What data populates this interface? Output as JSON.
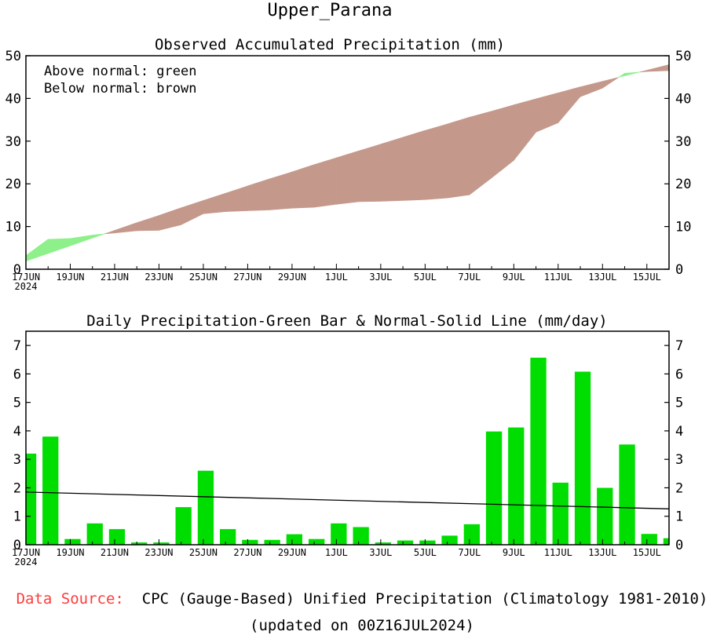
{
  "title": "Upper_Parana",
  "colors": {
    "above": "#8ef08a",
    "below": "#c4998c",
    "bars": "#00dd00",
    "normal_line": "#000000",
    "source_label": "#ff3b3b"
  },
  "legend": {
    "line1": "Above normal: green",
    "line2": "Below normal: brown"
  },
  "x_ticks": [
    {
      "day": 0,
      "label": "17JUN"
    },
    {
      "day": 2,
      "label": "19JUN"
    },
    {
      "day": 4,
      "label": "21JUN"
    },
    {
      "day": 6,
      "label": "23JUN"
    },
    {
      "day": 8,
      "label": "25JUN"
    },
    {
      "day": 10,
      "label": "27JUN"
    },
    {
      "day": 12,
      "label": "29JUN"
    },
    {
      "day": 14,
      "label": "1JUL"
    },
    {
      "day": 16,
      "label": "3JUL"
    },
    {
      "day": 18,
      "label": "5JUL"
    },
    {
      "day": 20,
      "label": "7JUL"
    },
    {
      "day": 22,
      "label": "9JUL"
    },
    {
      "day": 24,
      "label": "11JUL"
    },
    {
      "day": 26,
      "label": "13JUL"
    },
    {
      "day": 28,
      "label": "15JUL"
    }
  ],
  "year_label": "2024",
  "chart_data": [
    {
      "type": "area",
      "title": "Observed Accumulated Precipitation (mm)",
      "xlabel": "",
      "ylabel": "",
      "xlim": [
        0,
        29
      ],
      "ylim": [
        0,
        50
      ],
      "yticks": [
        0,
        10,
        20,
        30,
        40,
        50
      ],
      "series": [
        {
          "name": "Observed accumulated",
          "x": [
            0,
            1,
            2,
            3,
            4,
            5,
            6,
            7,
            8,
            9,
            10,
            11,
            12,
            13,
            14,
            15,
            16,
            17,
            18,
            19,
            20,
            21,
            22,
            23,
            24,
            25,
            26,
            27,
            28,
            29
          ],
          "values": [
            3.2,
            7.0,
            7.2,
            8.0,
            8.5,
            9.0,
            9.1,
            10.4,
            13.0,
            13.5,
            13.7,
            13.9,
            14.3,
            14.5,
            15.2,
            15.8,
            15.9,
            16.1,
            16.3,
            16.7,
            17.4,
            21.4,
            25.5,
            32.1,
            34.3,
            40.4,
            42.4,
            45.9,
            46.3,
            46.5
          ]
        },
        {
          "name": "Normal accumulated",
          "x": [
            0,
            1,
            2,
            3,
            4,
            5,
            6,
            7,
            8,
            9,
            10,
            11,
            12,
            13,
            14,
            15,
            16,
            17,
            18,
            19,
            20,
            21,
            22,
            23,
            24,
            25,
            26,
            27,
            28,
            29
          ],
          "values": [
            1.9,
            3.7,
            5.5,
            7.3,
            9.1,
            10.9,
            12.6,
            14.4,
            16.1,
            17.8,
            19.5,
            21.2,
            22.8,
            24.5,
            26.1,
            27.7,
            29.3,
            30.9,
            32.5,
            34.0,
            35.6,
            37.0,
            38.5,
            39.9,
            41.3,
            42.7,
            44.0,
            45.3,
            46.6,
            47.9
          ]
        }
      ]
    },
    {
      "type": "bar",
      "title": "Daily Precipitation-Green Bar & Normal-Solid Line (mm/day)",
      "xlabel": "",
      "ylabel": "",
      "xlim": [
        0,
        29
      ],
      "ylim": [
        0,
        7.5
      ],
      "yticks": [
        0,
        1,
        2,
        3,
        4,
        5,
        6,
        7
      ],
      "series": [
        {
          "name": "Daily precipitation",
          "x": [
            0,
            1,
            2,
            3,
            4,
            5,
            6,
            7,
            8,
            9,
            10,
            11,
            12,
            13,
            14,
            15,
            16,
            17,
            18,
            19,
            20,
            21,
            22,
            23,
            24,
            25,
            26,
            27,
            28,
            29
          ],
          "values": [
            3.2,
            3.8,
            0.2,
            0.75,
            0.55,
            0.08,
            0.08,
            1.32,
            2.6,
            0.55,
            0.17,
            0.17,
            0.37,
            0.2,
            0.75,
            0.62,
            0.08,
            0.15,
            0.15,
            0.32,
            0.72,
            3.98,
            4.12,
            6.57,
            2.18,
            6.08,
            2.0,
            3.52,
            0.38,
            0.23
          ]
        },
        {
          "name": "Normal",
          "x": [
            0,
            29
          ],
          "values": [
            1.85,
            1.26
          ]
        }
      ]
    }
  ],
  "footer": {
    "source_label": "Data Source:",
    "source_text": "CPC (Gauge-Based) Unified Precipitation (Climatology 1981-2010)",
    "updated": "(updated on 00Z16JUL2024)"
  }
}
